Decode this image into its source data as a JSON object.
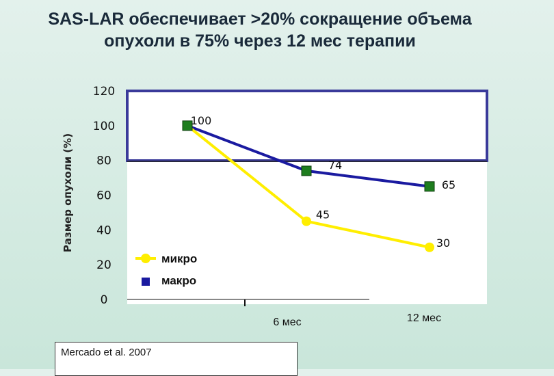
{
  "title": {
    "line1": "SAS-LAR обеспечивает >20% сокращение объема",
    "line2": "опухоли в 75%  через 12 мес терапии"
  },
  "source": "Mercado et al. 2007",
  "colors": {
    "background": "#d6ede3",
    "plot_area": "#ffffff",
    "mikro": "#ffee00",
    "makro": "#1a1aa0",
    "makro_marker": "#1e7d1e",
    "highlight_frame": "#3a3a9a"
  },
  "chart_data": {
    "type": "line",
    "categories": [
      "",
      "6 мес",
      "12 мес"
    ],
    "ylabel": "Размер опухоли (%)",
    "ylim": [
      0,
      120
    ],
    "yticks": [
      "0",
      "20",
      "40",
      "60",
      "80",
      "100",
      "120"
    ],
    "legend_position": "bottom-left",
    "series": [
      {
        "name": "микро",
        "values": [
          100,
          45,
          30
        ],
        "labels": [
          "",
          "45",
          "30"
        ],
        "marker": "circle"
      },
      {
        "name": "макро",
        "values": [
          100,
          74,
          65
        ],
        "labels": [
          "100",
          "74",
          "65"
        ],
        "marker": "square"
      }
    ]
  }
}
